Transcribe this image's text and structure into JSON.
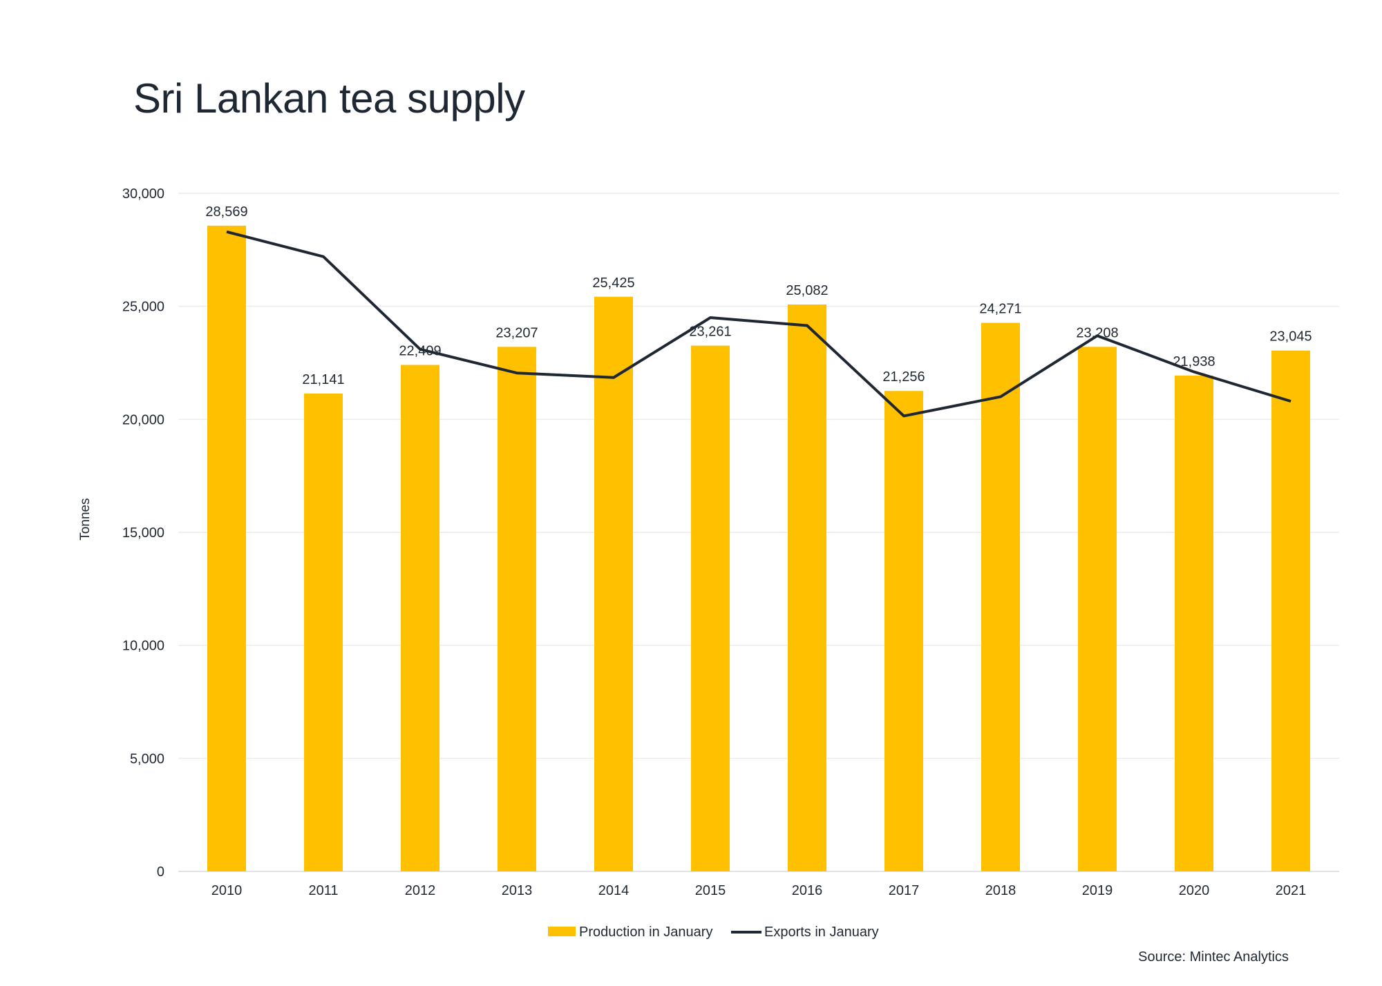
{
  "chart_data": {
    "type": "bar",
    "title": "Sri Lankan tea supply",
    "ylabel": "Tonnes",
    "xlabel": "",
    "ylim": [
      0,
      30000
    ],
    "yticks": [
      0,
      5000,
      10000,
      15000,
      20000,
      25000,
      30000
    ],
    "ytick_labels": [
      "0",
      "5,000",
      "10,000",
      "15,000",
      "20,000",
      "25,000",
      "30,000"
    ],
    "categories": [
      "2010",
      "2011",
      "2012",
      "2013",
      "2014",
      "2015",
      "2016",
      "2017",
      "2018",
      "2019",
      "2020",
      "2021"
    ],
    "series": [
      {
        "name": "Production in January",
        "type": "bar",
        "color": "#FFC000",
        "values": [
          28569,
          21141,
          22409,
          23207,
          25425,
          23261,
          25082,
          21256,
          24271,
          23208,
          21938,
          23045
        ],
        "data_labels": [
          "28,569",
          "21,141",
          "22,409",
          "23,207",
          "25,425",
          "23,261",
          "25,082",
          "21,256",
          "24,271",
          "23,208",
          "21,938",
          "23,045"
        ]
      },
      {
        "name": "Exports in January",
        "type": "line",
        "color": "#1f2733",
        "values": [
          28300,
          27200,
          23100,
          22050,
          21850,
          24500,
          24150,
          20150,
          21000,
          23700,
          22100,
          20800
        ]
      }
    ],
    "grid": true,
    "legend": "bottom-center"
  },
  "source": "Source: Mintec Analytics"
}
